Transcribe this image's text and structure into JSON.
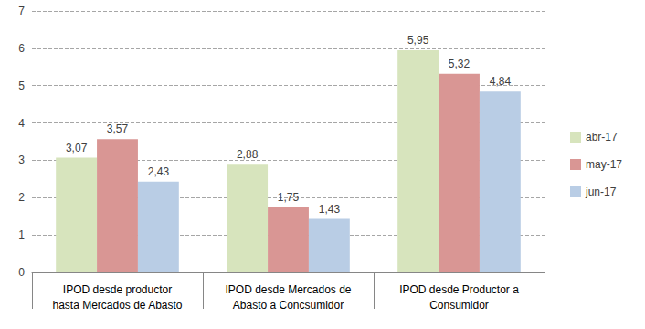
{
  "chart_data": {
    "type": "bar",
    "categories": [
      "IPOD desde productor\nhasta Mercados de Abasto",
      "IPOD desde Mercados de\nAbasto a Concsumidor",
      "IPOD desde Productor a\nConsumidor"
    ],
    "series": [
      {
        "name": "abr-17",
        "color": "#d7e4bd",
        "values": [
          3.07,
          2.88,
          5.95
        ],
        "value_labels": [
          "3,07",
          "2,88",
          "5,95"
        ]
      },
      {
        "name": "may-17",
        "color": "#d99694",
        "values": [
          3.57,
          1.75,
          5.32
        ],
        "value_labels": [
          "3,57",
          "1,75",
          "5,32"
        ]
      },
      {
        "name": "jun-17",
        "color": "#b9cde5",
        "values": [
          2.43,
          1.43,
          4.84
        ],
        "value_labels": [
          "2,43",
          "1,43",
          "4,84"
        ]
      }
    ],
    "ylim": [
      0,
      7
    ],
    "yticks": [
      0,
      1,
      2,
      3,
      4,
      5,
      6,
      7
    ],
    "grid": true,
    "legend": "right",
    "data_labels": true
  }
}
